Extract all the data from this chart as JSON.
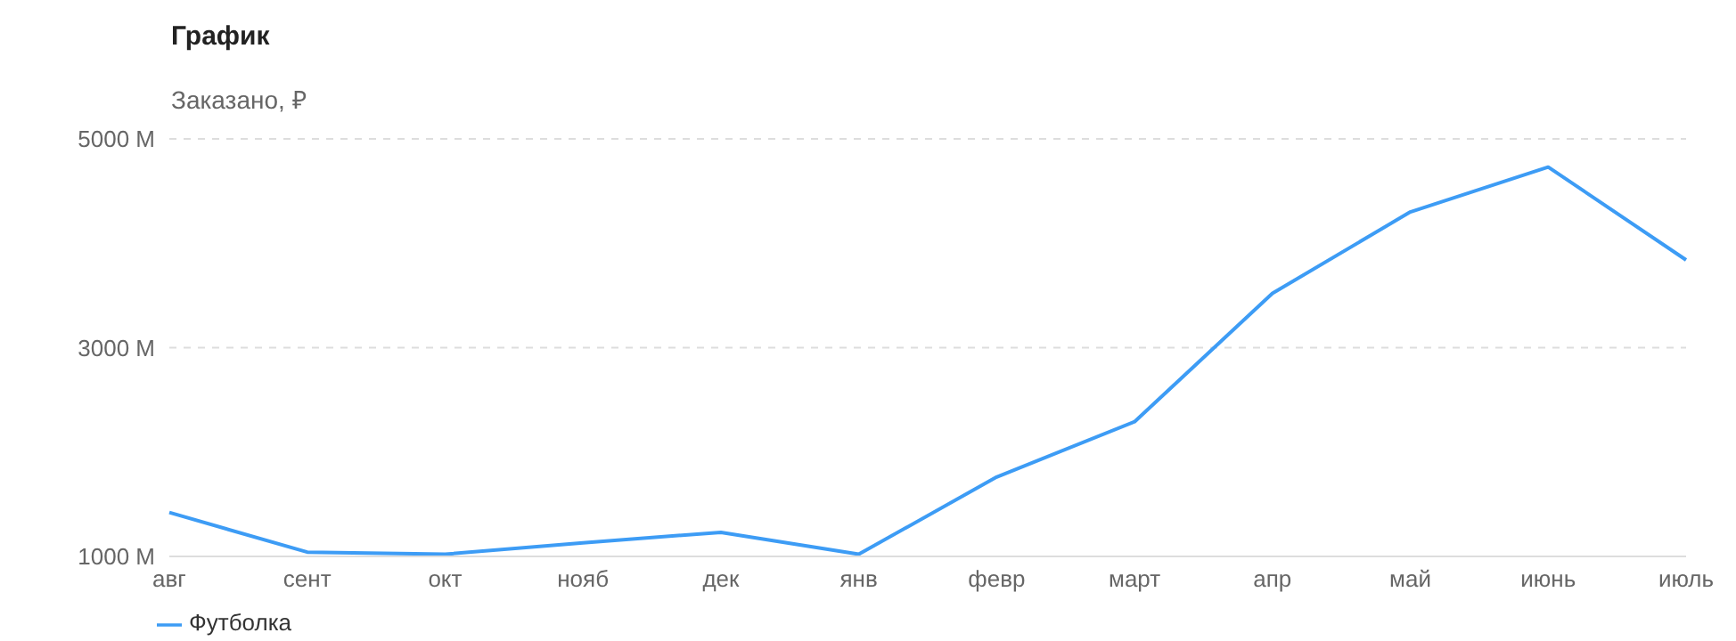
{
  "chart_data": {
    "type": "line",
    "title": "График",
    "subtitle": "Заказано, ₽",
    "categories": [
      "авг",
      "сент",
      "окт",
      "нояб",
      "дек",
      "янв",
      "февр",
      "март",
      "апр",
      "май",
      "июнь",
      "июль"
    ],
    "series": [
      {
        "name": "Футболка",
        "color": "#3d9cf5",
        "values": [
          1420,
          1040,
          1020,
          1130,
          1230,
          1020,
          1760,
          2290,
          3520,
          4300,
          4730,
          3840
        ]
      }
    ],
    "ylim": [
      1000,
      5000
    ],
    "yticks": [
      {
        "value": 1000,
        "label": "1000 М"
      },
      {
        "value": 3000,
        "label": "3000 М"
      },
      {
        "value": 5000,
        "label": "5000 М"
      }
    ],
    "grid": "y",
    "legend": "bottom left",
    "marker": "none",
    "line_style": "solid"
  }
}
